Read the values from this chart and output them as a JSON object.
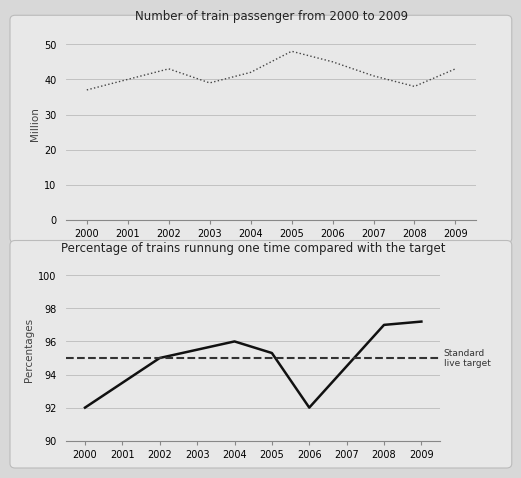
{
  "chart1": {
    "title": "Number of train passenger from 2000 to 2009",
    "years": [
      2000,
      2001,
      2002,
      2003,
      2004,
      2005,
      2006,
      2007,
      2008,
      2009
    ],
    "values": [
      37,
      40,
      43,
      39,
      42,
      48,
      45,
      41,
      38,
      43
    ],
    "ylabel": "Million",
    "ylim": [
      0,
      55
    ],
    "yticks": [
      0,
      10,
      20,
      30,
      40,
      50
    ],
    "line_color": "#444444",
    "panel_bg": "#e8e8e8"
  },
  "chart2": {
    "title": "Percentage of trains runnung one time compared with the target",
    "years": [
      2000,
      2001,
      2002,
      2003,
      2004,
      2005,
      2006,
      2007,
      2008,
      2009
    ],
    "values": [
      92.0,
      93.5,
      95.0,
      95.5,
      96.0,
      95.3,
      92.0,
      94.5,
      97.0,
      97.2
    ],
    "target": 95.0,
    "ylabel": "Percentages",
    "ylim": [
      90,
      101
    ],
    "yticks": [
      90,
      92,
      94,
      96,
      98,
      100
    ],
    "line_color": "#111111",
    "target_color": "#333333",
    "target_label": "Standard\nlive target",
    "panel_bg": "#e8e8e8"
  },
  "fig_bg": "#d8d8d8",
  "panel_bg": "#e8e8e8"
}
